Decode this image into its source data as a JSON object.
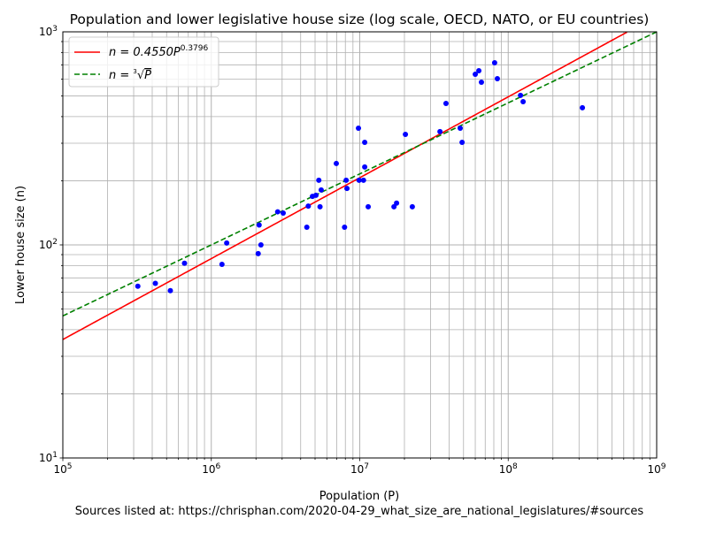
{
  "chart_data": {
    "type": "scatter",
    "title": "Population and lower legislative house size (log scale, OECD, NATO, or EU countries)",
    "xlabel": "Population (P)",
    "ylabel": "Lower house size (n)",
    "footer": "Sources listed at: https://chrisphan.com/2020-04-29_what_size_are_national_legislatures/#sources",
    "x_scale": "log",
    "y_scale": "log",
    "xlim": [
      100000,
      1000000000
    ],
    "ylim": [
      10,
      1000
    ],
    "x_ticks": [
      {
        "base": "10",
        "exp": "5"
      },
      {
        "base": "10",
        "exp": "6"
      },
      {
        "base": "10",
        "exp": "7"
      },
      {
        "base": "10",
        "exp": "8"
      },
      {
        "base": "10",
        "exp": "9"
      }
    ],
    "y_ticks": [
      {
        "base": "10",
        "exp": "1"
      },
      {
        "base": "10",
        "exp": "2"
      },
      {
        "base": "10",
        "exp": "3"
      }
    ],
    "grid": true,
    "legend_position": "top-left",
    "series": [
      {
        "type": "line",
        "label_prefix": "n = 0.4550P",
        "label_exp": "0.3796",
        "coef": 0.455,
        "power": 0.3796,
        "color": "#ff0000",
        "style": "solid"
      },
      {
        "type": "line",
        "label_prefix": "n = ",
        "label_root": "3",
        "label_radicand": "P",
        "coef": 1,
        "power": 0.333333,
        "color": "#008000",
        "style": "dashed"
      },
      {
        "type": "scatter",
        "color": "#0000ff",
        "points": [
          [
            320000,
            64
          ],
          [
            420000,
            66
          ],
          [
            530000,
            61
          ],
          [
            660000,
            82
          ],
          [
            1180000,
            81
          ],
          [
            1270000,
            102
          ],
          [
            2070000,
            91
          ],
          [
            2100000,
            124
          ],
          [
            2160000,
            100
          ],
          [
            2800000,
            143
          ],
          [
            3050000,
            141
          ],
          [
            4400000,
            121
          ],
          [
            4500000,
            152
          ],
          [
            4800000,
            169
          ],
          [
            5070000,
            171
          ],
          [
            5300000,
            201
          ],
          [
            5500000,
            181
          ],
          [
            5400000,
            151
          ],
          [
            6950000,
            241
          ],
          [
            7900000,
            121
          ],
          [
            8100000,
            201
          ],
          [
            8200000,
            184
          ],
          [
            9800000,
            353
          ],
          [
            9900000,
            201
          ],
          [
            10600000,
            201
          ],
          [
            10800000,
            303
          ],
          [
            10800000,
            232
          ],
          [
            11400000,
            151
          ],
          [
            17000000,
            151
          ],
          [
            17700000,
            157
          ],
          [
            20300000,
            330
          ],
          [
            22600000,
            151
          ],
          [
            34700000,
            340
          ],
          [
            47500000,
            353
          ],
          [
            48900000,
            303
          ],
          [
            38100000,
            461
          ],
          [
            60000000,
            632
          ],
          [
            63400000,
            657
          ],
          [
            66000000,
            580
          ],
          [
            81000000,
            716
          ],
          [
            84500000,
            603
          ],
          [
            121000000,
            503
          ],
          [
            126000000,
            470
          ],
          [
            316000000,
            440
          ]
        ]
      }
    ]
  }
}
